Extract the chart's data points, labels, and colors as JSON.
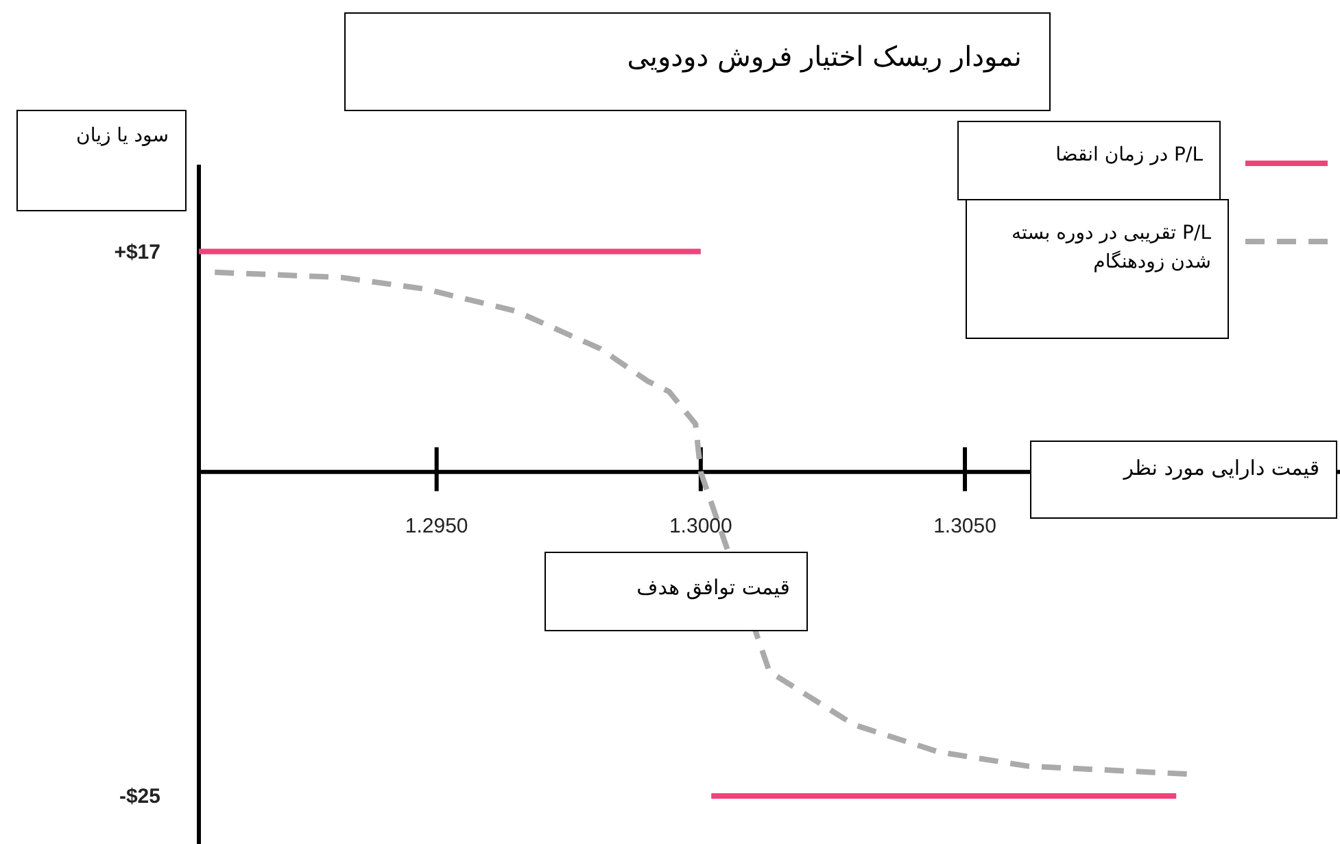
{
  "chart_data": {
    "type": "line",
    "title": "نمودار ریسک اختیار فروش دودویی",
    "xlabel": "قیمت دارایی مورد نظر",
    "ylabel": "سود یا زیان",
    "annotations": [
      "قیمت توافق هدف"
    ],
    "xlim": [
      1.2905,
      1.3121
    ],
    "xticks": [
      {
        "value": 1.295,
        "label": "1.2950"
      },
      {
        "value": 1.3,
        "label": "1.3000"
      },
      {
        "value": 1.305,
        "label": "1.3050"
      }
    ],
    "ylim": [
      -28.7,
      23.7
    ],
    "yticks": [
      {
        "value": 17,
        "label": "+$17"
      },
      {
        "value": -25,
        "label": "-$25"
      }
    ],
    "grid": false,
    "legend": "top right",
    "marker": "none",
    "series": [
      {
        "name": "P/L در زمان انقضا",
        "color": "#f0437a",
        "line_style": "solid",
        "x": [
          1.2905,
          1.3,
          null,
          1.3002,
          1.309
        ],
        "values": [
          17,
          17,
          null,
          -25,
          -25
        ]
      },
      {
        "name": "P/L تقریبی در دوره بسته شدن زودهنگام",
        "color": "#aaaaaa",
        "line_style": "dashed",
        "x": [
          1.2908,
          1.2932,
          1.2948,
          1.2965,
          1.2981,
          1.299,
          1.2994,
          1.2999,
          1.3,
          1.3013,
          1.3029,
          1.3045,
          1.3062,
          1.3092
        ],
        "values": [
          15.4,
          15.0,
          14.1,
          12.4,
          9.5,
          7.0,
          6.2,
          3.7,
          0,
          -15.4,
          -19.5,
          -21.6,
          -22.7,
          -23.3
        ]
      }
    ]
  }
}
